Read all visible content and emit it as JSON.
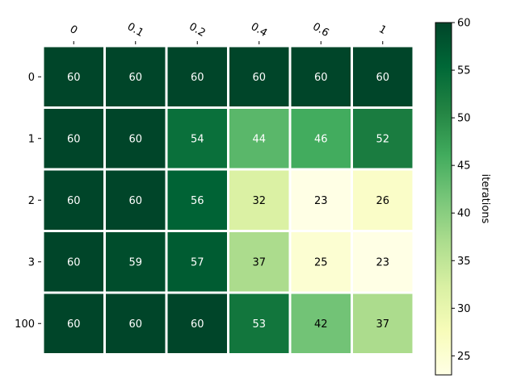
{
  "chart_data": {
    "type": "heatmap",
    "x_categories": [
      "0",
      "0.1",
      "0.2",
      "0.4",
      "0.6",
      "1"
    ],
    "y_categories": [
      "0",
      "1",
      "2",
      "3",
      "100"
    ],
    "values": [
      [
        60,
        60,
        60,
        60,
        60,
        60
      ],
      [
        60,
        60,
        54,
        44,
        46,
        52
      ],
      [
        60,
        60,
        56,
        32,
        23,
        26
      ],
      [
        60,
        59,
        57,
        37,
        25,
        23
      ],
      [
        60,
        60,
        60,
        53,
        42,
        37
      ]
    ],
    "colorbar": {
      "label": "iterations",
      "range": [
        23,
        60
      ],
      "ticks": [
        25,
        30,
        35,
        40,
        45,
        50,
        55,
        60
      ],
      "colormap": "YlGn"
    },
    "x_tick_position": "top",
    "grid": false
  }
}
